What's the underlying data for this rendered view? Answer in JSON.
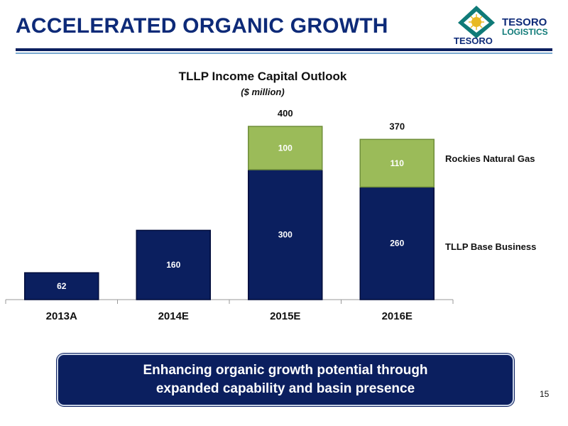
{
  "slide": {
    "title": "ACCELERATED ORGANIC GROWTH",
    "page_number": "15",
    "banner_line1": "Enhancing organic growth potential through",
    "banner_line2": "expanded capability and basin presence"
  },
  "logo": {
    "brand_top": "TESORO",
    "brand_sub": "LOGISTICS",
    "brand_main": "TESORO"
  },
  "colors": {
    "title": "#0d2a78",
    "base_series": "#0b1f5f",
    "gas_series": "#9bbb59",
    "banner": "#0b1f5f"
  },
  "chart_data": {
    "type": "bar",
    "stacked": true,
    "title": "TLLP Income Capital Outlook",
    "subtitle": "($ million)",
    "categories": [
      "2013A",
      "2014E",
      "2015E",
      "2016E"
    ],
    "series": [
      {
        "name": "TLLP Base Business",
        "values": [
          62,
          160,
          300,
          260
        ],
        "labels": [
          "62",
          "160",
          "300",
          "260"
        ]
      },
      {
        "name": "Rockies Natural Gas",
        "values": [
          null,
          null,
          100,
          110
        ],
        "labels": [
          "",
          "",
          "100",
          "110"
        ]
      }
    ],
    "totals": [
      null,
      null,
      400,
      370
    ],
    "total_labels": [
      "",
      "",
      "400",
      "370"
    ],
    "ylim": [
      0,
      420
    ],
    "legend": "right"
  }
}
